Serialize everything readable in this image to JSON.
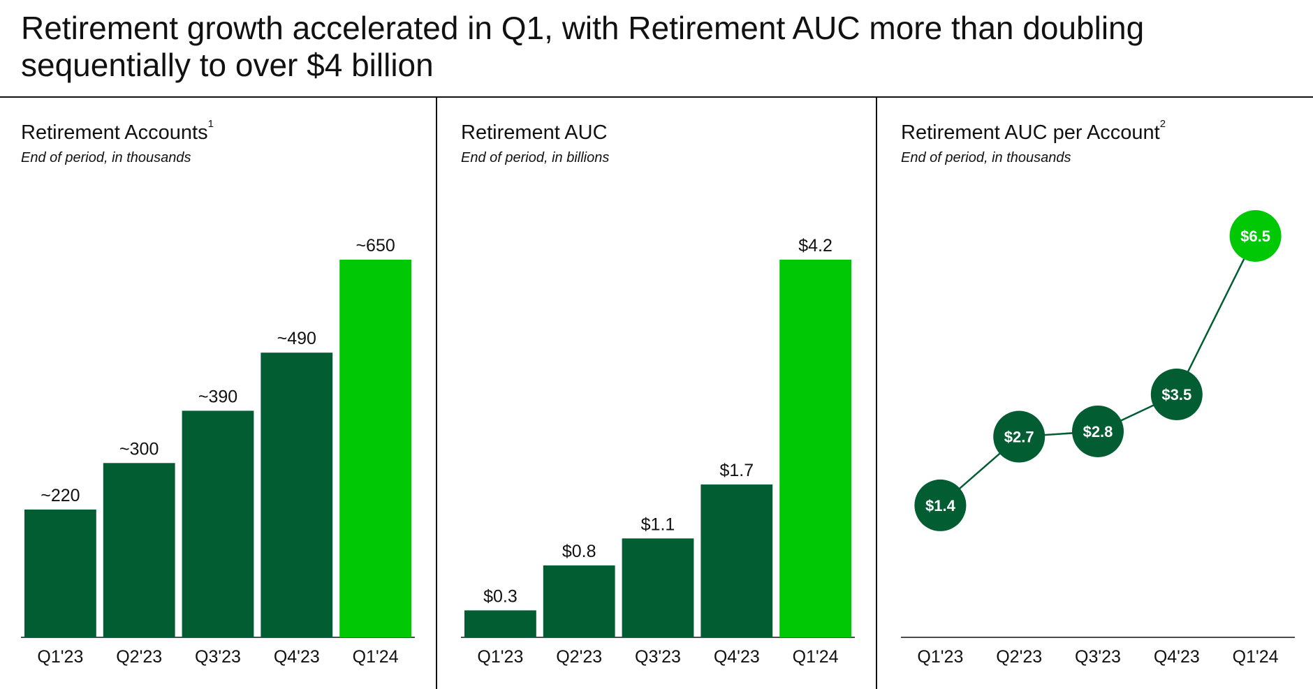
{
  "headline": "Retirement growth accelerated in Q1, with Retirement AUC more than doubling sequentially to over $4 billion",
  "colors": {
    "dark_green": "#035d33",
    "bright_green": "#00c805",
    "text": "#111111"
  },
  "chart_data": [
    {
      "type": "bar",
      "title": "Retirement Accounts",
      "title_footnote": "1",
      "subtitle": "End of period, in thousands",
      "categories": [
        "Q1'23",
        "Q2'23",
        "Q3'23",
        "Q4'23",
        "Q1'24"
      ],
      "values": [
        220,
        300,
        390,
        490,
        650
      ],
      "data_labels": [
        "~220",
        "~300",
        "~390",
        "~490",
        "~650"
      ],
      "highlight_index": 4,
      "ylim": [
        0,
        650
      ]
    },
    {
      "type": "bar",
      "title": "Retirement AUC",
      "title_footnote": "",
      "subtitle": "End of period, in billions",
      "categories": [
        "Q1'23",
        "Q2'23",
        "Q3'23",
        "Q4'23",
        "Q1'24"
      ],
      "values": [
        0.3,
        0.8,
        1.1,
        1.7,
        4.2
      ],
      "data_labels": [
        "$0.3",
        "$0.8",
        "$1.1",
        "$1.7",
        "$4.2"
      ],
      "highlight_index": 4,
      "ylim": [
        0,
        4.2
      ]
    },
    {
      "type": "line",
      "title": "Retirement AUC per Account",
      "title_footnote": "2",
      "subtitle": "End of period, in thousands",
      "categories": [
        "Q1'23",
        "Q2'23",
        "Q3'23",
        "Q4'23",
        "Q1'24"
      ],
      "values": [
        1.4,
        2.7,
        2.8,
        3.5,
        6.5
      ],
      "data_labels": [
        "$1.4",
        "$2.7",
        "$2.8",
        "$3.5",
        "$6.5"
      ],
      "highlight_index": 4,
      "ylim": [
        0.5,
        6.5
      ]
    }
  ]
}
